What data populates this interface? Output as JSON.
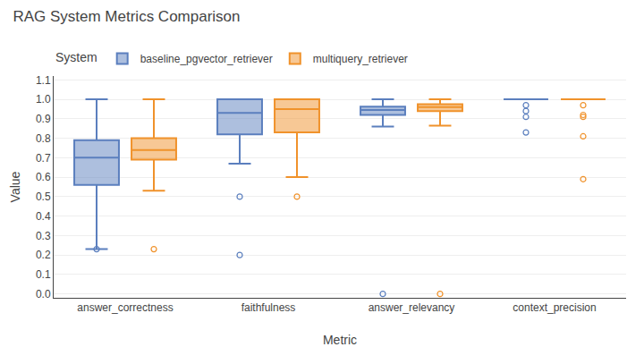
{
  "chart_data": {
    "type": "box",
    "title": "RAG System Metrics Comparison",
    "xlabel": "Metric",
    "ylabel": "Value",
    "legend_title": "System",
    "categories": [
      "answer_correctness",
      "faithfulness",
      "answer_relevancy",
      "context_precision"
    ],
    "series": [
      {
        "name": "baseline_pgvector_retriever",
        "color": "#5b7fbe",
        "values": [
          {
            "lower_whisker": 0.23,
            "q1": 0.56,
            "median": 0.7,
            "q3": 0.79,
            "upper_whisker": 1.0,
            "outliers": [
              0.23
            ]
          },
          {
            "lower_whisker": 0.67,
            "q1": 0.82,
            "median": 0.93,
            "q3": 1.0,
            "upper_whisker": 1.0,
            "outliers": [
              0.2,
              0.5
            ]
          },
          {
            "lower_whisker": 0.86,
            "q1": 0.92,
            "median": 0.945,
            "q3": 0.962,
            "upper_whisker": 1.0,
            "outliers": [
              0.0
            ]
          },
          {
            "lower_whisker": 1.0,
            "q1": 1.0,
            "median": 1.0,
            "q3": 1.0,
            "upper_whisker": 1.0,
            "outliers": [
              0.83,
              0.91,
              0.94,
              0.97
            ]
          }
        ]
      },
      {
        "name": "multiquery_retriever",
        "color": "#f0922b",
        "values": [
          {
            "lower_whisker": 0.53,
            "q1": 0.69,
            "median": 0.74,
            "q3": 0.8,
            "upper_whisker": 1.0,
            "outliers": [
              0.23
            ]
          },
          {
            "lower_whisker": 0.6,
            "q1": 0.83,
            "median": 0.95,
            "q3": 1.0,
            "upper_whisker": 1.0,
            "outliers": [
              0.5
            ]
          },
          {
            "lower_whisker": 0.865,
            "q1": 0.94,
            "median": 0.96,
            "q3": 0.975,
            "upper_whisker": 1.0,
            "outliers": [
              0.0
            ]
          },
          {
            "lower_whisker": 1.0,
            "q1": 1.0,
            "median": 1.0,
            "q3": 1.0,
            "upper_whisker": 1.0,
            "outliers": [
              0.59,
              0.81,
              0.91,
              0.92,
              0.97
            ]
          }
        ]
      }
    ],
    "ylim": [
      -0.02,
      1.12
    ],
    "yticks": [
      {
        "value": 0.0,
        "label": "0.0"
      },
      0.1,
      0.2,
      0.3,
      0.4,
      0.5,
      0.6,
      0.7,
      0.8,
      0.9,
      {
        "value": 1.0,
        "label": "1.0"
      },
      1.1
    ],
    "grid": true,
    "legend": "top"
  }
}
